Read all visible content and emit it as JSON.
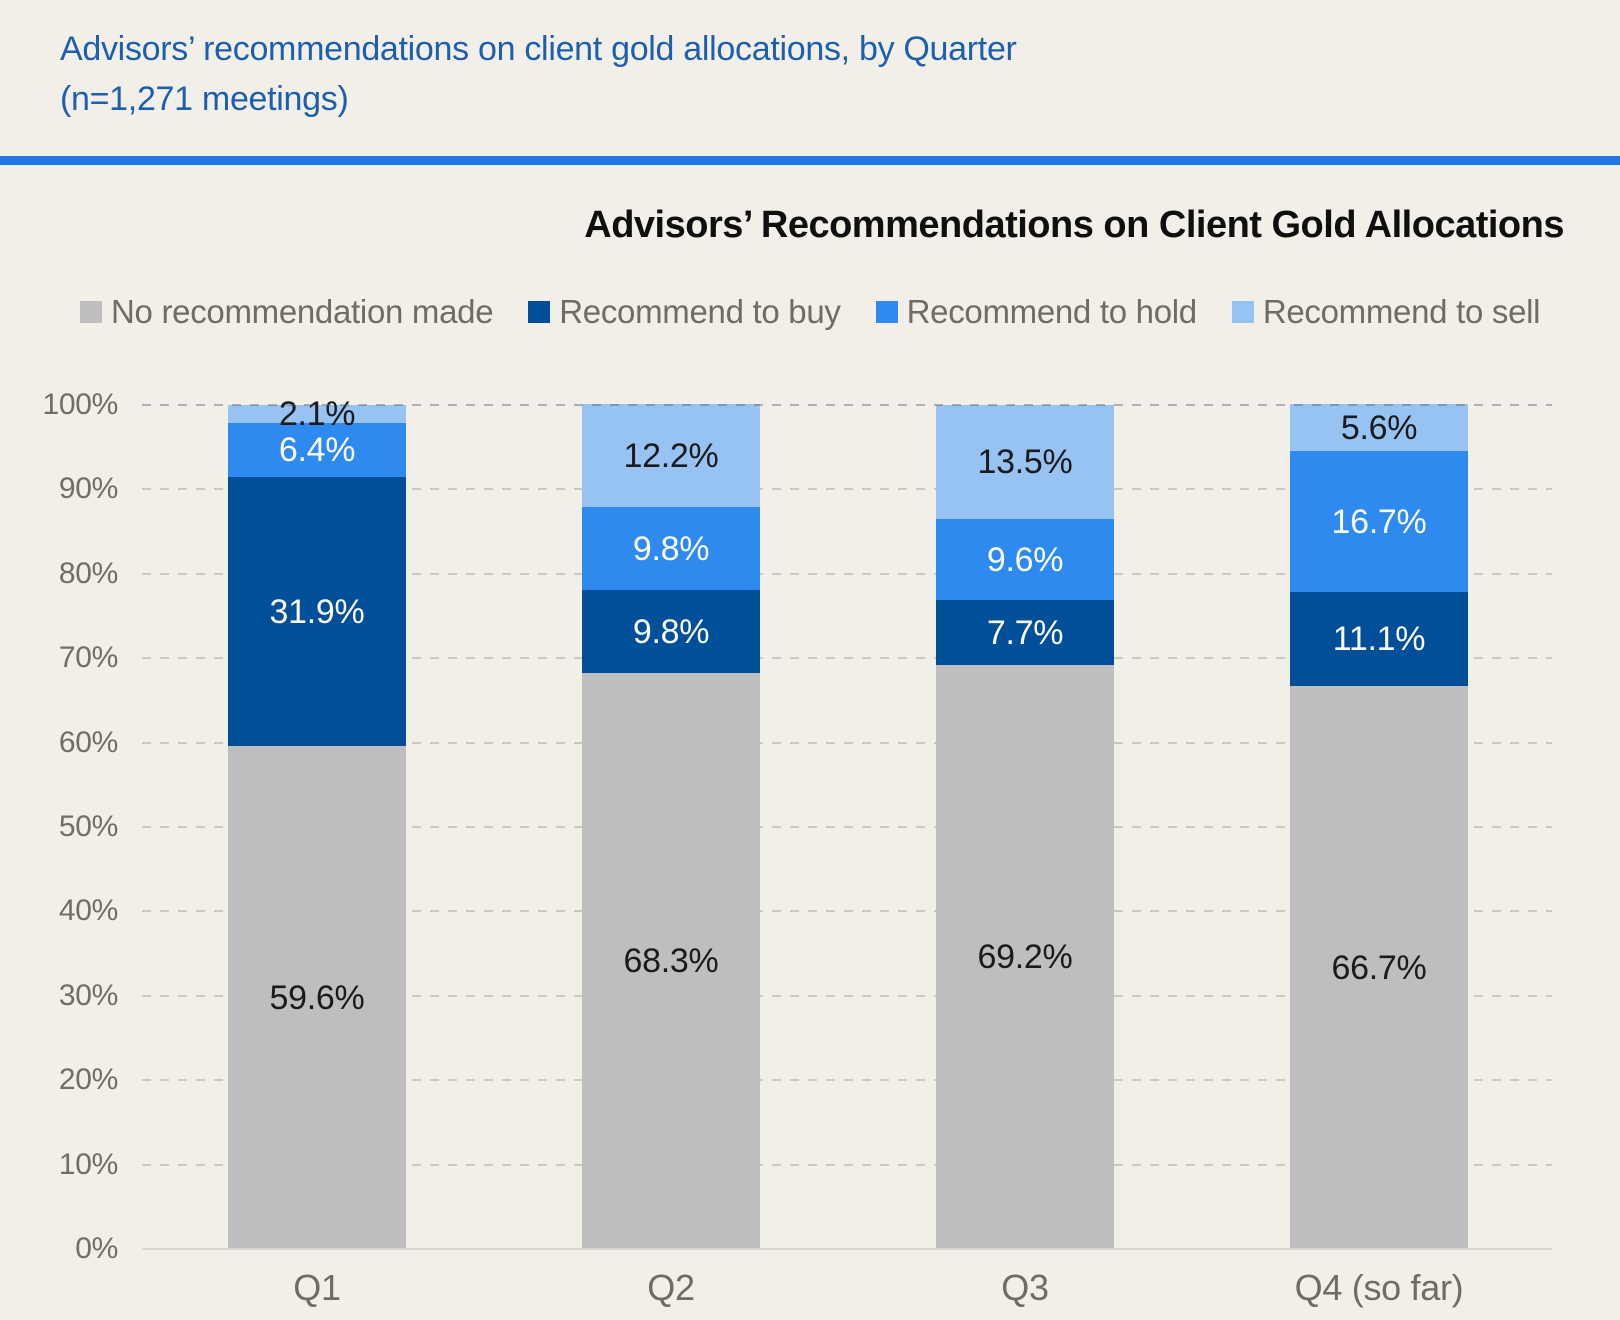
{
  "header": {
    "line1": "Advisors’ recommendations on client gold allocations, by Quarter",
    "line2": "(n=1,271 meetings)"
  },
  "chart": {
    "title": "Advisors’ Recommendations on Client Gold Allocations"
  },
  "colors": {
    "background": "#f2efe9",
    "header_text": "#1c5fad",
    "divider": "#2277e5",
    "no_recommendation": "#bfbebe",
    "buy": "#014e99",
    "hold": "#2e8aef",
    "sell": "#97c3f3",
    "axis_text": "#716d68",
    "legend_text": "#6f6c67"
  },
  "chart_data": {
    "type": "bar",
    "subtype": "stacked-percent-column",
    "title": "Advisors’ Recommendations on Client Gold Allocations",
    "categories": [
      "Q1",
      "Q2",
      "Q3",
      "Q4 (so far)"
    ],
    "series": [
      {
        "name": "No recommendation made",
        "color": "#bfbebe",
        "label_color": "#1b1b1d",
        "values": [
          59.6,
          68.3,
          69.2,
          66.7
        ]
      },
      {
        "name": "Recommend to buy",
        "color": "#014e99",
        "label_color": "#fbfbfb",
        "values": [
          31.9,
          9.8,
          7.7,
          11.1
        ]
      },
      {
        "name": "Recommend to hold",
        "color": "#2e8aef",
        "label_color": "#fbfbfb",
        "values": [
          6.4,
          9.8,
          9.6,
          16.7
        ]
      },
      {
        "name": "Recommend to sell",
        "color": "#97c3f3",
        "label_color": "#1b1b1d",
        "values": [
          2.1,
          12.2,
          13.5,
          5.6
        ]
      }
    ],
    "data_label_format": "percent-one-decimal",
    "xlabel": "",
    "ylabel": "",
    "ylim": [
      0,
      100
    ],
    "y_ticks": [
      "100%",
      "90%",
      "80%",
      "70%",
      "60%",
      "50%",
      "40%",
      "30%",
      "20%",
      "10%",
      "0%"
    ],
    "grid": "horizontal-dashed",
    "legend_position": "top"
  }
}
